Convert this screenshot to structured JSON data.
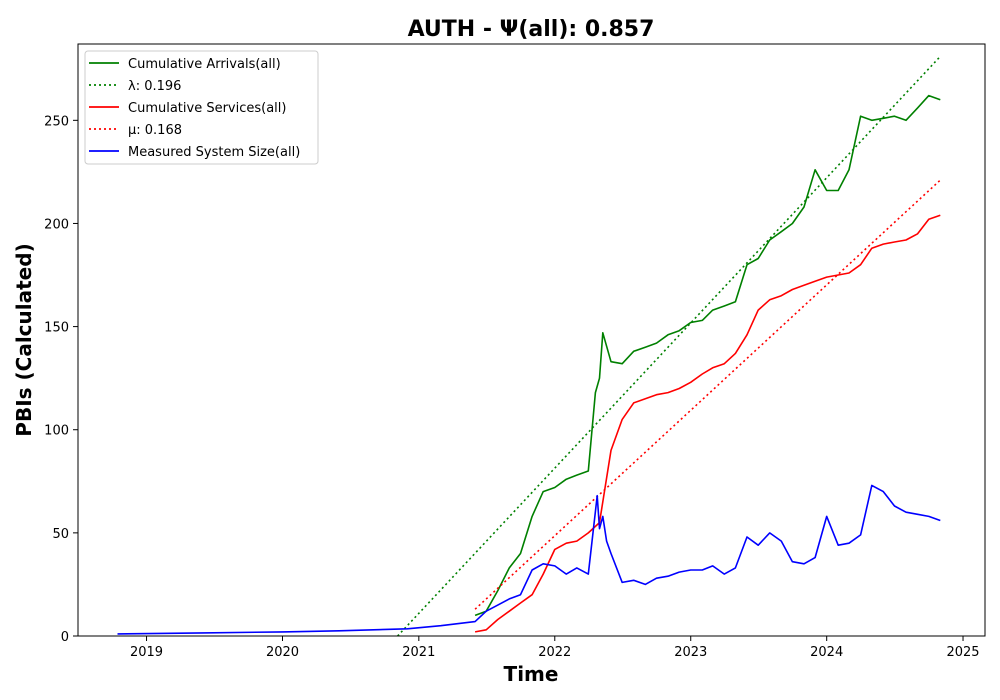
{
  "chart_data": {
    "type": "line",
    "title": "AUTH -  Ψ(all): 0.857",
    "xlabel": "Time",
    "ylabel": "PBIs (Calculated)",
    "xlim": [
      "2018-07-01",
      "2025-03-01"
    ],
    "ylim": [
      0,
      287
    ],
    "x_ticks": [
      "2019",
      "2020",
      "2021",
      "2022",
      "2023",
      "2024",
      "2025"
    ],
    "y_ticks": [
      "0",
      "50",
      "100",
      "150",
      "200",
      "250"
    ],
    "grid": false,
    "legend_position": "top-left",
    "legend": [
      {
        "label": "Cumulative Arrivals(all)",
        "color": "#008000",
        "style": "solid"
      },
      {
        "label": "λ: 0.196",
        "color": "#008000",
        "style": "dotted"
      },
      {
        "label": "Cumulative Services(all)",
        "color": "#ff0000",
        "style": "solid"
      },
      {
        "label": "μ: 0.168",
        "color": "#ff0000",
        "style": "dotted"
      },
      {
        "label": "Measured System Size(all)",
        "color": "#0000ff",
        "style": "solid"
      }
    ],
    "series": [
      {
        "name": "Cumulative Arrivals(all)",
        "color": "#008000",
        "style": "solid",
        "x": [
          "2021-06-01",
          "2021-07-01",
          "2021-08-01",
          "2021-09-01",
          "2021-10-01",
          "2021-11-01",
          "2021-12-01",
          "2022-01-01",
          "2022-02-01",
          "2022-03-01",
          "2022-04-01",
          "2022-04-20",
          "2022-05-01",
          "2022-05-10",
          "2022-06-01",
          "2022-07-01",
          "2022-08-01",
          "2022-09-01",
          "2022-10-01",
          "2022-11-01",
          "2022-12-01",
          "2023-01-01",
          "2023-02-01",
          "2023-03-01",
          "2023-04-01",
          "2023-05-01",
          "2023-06-01",
          "2023-07-01",
          "2023-08-01",
          "2023-09-01",
          "2023-10-01",
          "2023-11-01",
          "2023-12-01",
          "2024-01-01",
          "2024-02-01",
          "2024-03-01",
          "2024-04-01",
          "2024-05-01",
          "2024-06-01",
          "2024-07-01",
          "2024-08-01",
          "2024-09-01",
          "2024-10-01",
          "2024-11-01"
        ],
        "y": [
          10,
          12,
          22,
          33,
          40,
          58,
          70,
          72,
          76,
          78,
          80,
          118,
          125,
          147,
          133,
          132,
          138,
          140,
          142,
          146,
          148,
          152,
          153,
          158,
          160,
          162,
          180,
          183,
          192,
          196,
          200,
          208,
          226,
          216,
          216,
          226,
          252,
          250,
          251,
          252,
          250,
          256,
          262,
          260
        ]
      },
      {
        "name": "λ: 0.196",
        "color": "#008000",
        "style": "dotted",
        "x": [
          "2020-11-05",
          "2024-11-01"
        ],
        "y": [
          0,
          281
        ]
      },
      {
        "name": "Cumulative Services(all)",
        "color": "#ff0000",
        "style": "solid",
        "x": [
          "2021-06-01",
          "2021-07-01",
          "2021-08-01",
          "2021-09-01",
          "2021-10-01",
          "2021-11-01",
          "2021-12-01",
          "2022-01-01",
          "2022-02-01",
          "2022-03-01",
          "2022-04-01",
          "2022-05-01",
          "2022-06-01",
          "2022-07-01",
          "2022-08-01",
          "2022-09-01",
          "2022-10-01",
          "2022-11-01",
          "2022-12-01",
          "2023-01-01",
          "2023-02-01",
          "2023-03-01",
          "2023-04-01",
          "2023-05-01",
          "2023-06-01",
          "2023-07-01",
          "2023-08-01",
          "2023-09-01",
          "2023-10-01",
          "2023-11-01",
          "2023-12-01",
          "2024-01-01",
          "2024-02-01",
          "2024-03-01",
          "2024-04-01",
          "2024-05-01",
          "2024-06-01",
          "2024-07-01",
          "2024-08-01",
          "2024-09-01",
          "2024-10-01",
          "2024-11-01"
        ],
        "y": [
          2,
          3,
          8,
          12,
          16,
          20,
          30,
          42,
          45,
          46,
          50,
          55,
          90,
          105,
          113,
          115,
          117,
          118,
          120,
          123,
          127,
          130,
          132,
          137,
          146,
          158,
          163,
          165,
          168,
          170,
          172,
          174,
          175,
          176,
          180,
          188,
          190,
          191,
          192,
          195,
          202,
          204
        ]
      },
      {
        "name": "μ: 0.168",
        "color": "#ff0000",
        "style": "dotted",
        "x": [
          "2021-06-01",
          "2024-11-01"
        ],
        "y": [
          13,
          221
        ]
      },
      {
        "name": "Measured System Size(all)",
        "color": "#0000ff",
        "style": "solid",
        "x": [
          "2018-10-15",
          "2019-06-01",
          "2020-01-01",
          "2020-06-01",
          "2020-12-01",
          "2021-03-01",
          "2021-06-01",
          "2021-07-01",
          "2021-08-01",
          "2021-09-01",
          "2021-10-01",
          "2021-11-01",
          "2021-12-01",
          "2022-01-01",
          "2022-02-01",
          "2022-03-01",
          "2022-04-01",
          "2022-04-25",
          "2022-05-01",
          "2022-05-10",
          "2022-05-20",
          "2022-06-01",
          "2022-07-01",
          "2022-08-01",
          "2022-09-01",
          "2022-10-01",
          "2022-11-01",
          "2022-12-01",
          "2023-01-01",
          "2023-02-01",
          "2023-03-01",
          "2023-04-01",
          "2023-05-01",
          "2023-06-01",
          "2023-07-01",
          "2023-08-01",
          "2023-09-01",
          "2023-10-01",
          "2023-11-01",
          "2023-12-01",
          "2024-01-01",
          "2024-02-01",
          "2024-03-01",
          "2024-04-01",
          "2024-05-01",
          "2024-06-01",
          "2024-07-01",
          "2024-08-01",
          "2024-09-01",
          "2024-10-01",
          "2024-11-01"
        ],
        "y": [
          1,
          1.5,
          2,
          2.5,
          3.5,
          5,
          7,
          12,
          15,
          18,
          20,
          32,
          35,
          34,
          30,
          33,
          30,
          68,
          52,
          58,
          46,
          40,
          26,
          27,
          25,
          28,
          29,
          31,
          32,
          32,
          34,
          30,
          33,
          48,
          44,
          50,
          46,
          36,
          35,
          38,
          58,
          44,
          45,
          49,
          73,
          70,
          63,
          60,
          59,
          58,
          56
        ]
      }
    ]
  }
}
